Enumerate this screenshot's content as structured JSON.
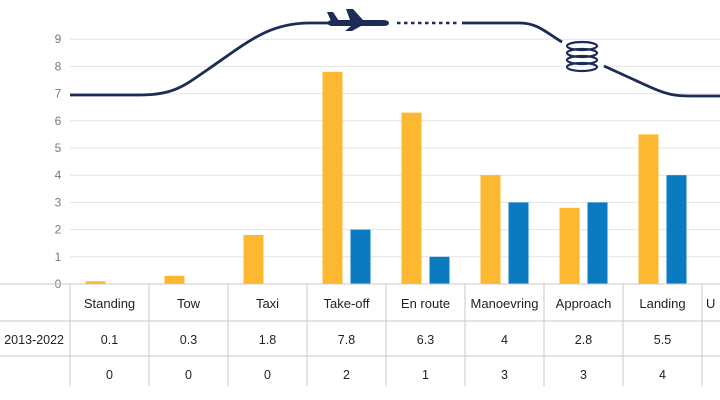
{
  "chart_data": {
    "type": "bar",
    "categories": [
      "Standing",
      "Tow",
      "Taxi",
      "Take-off",
      "En route",
      "Manoevring",
      "Approach",
      "Landing",
      "U"
    ],
    "series": [
      {
        "name": "2013-2022",
        "color": "#fbb830",
        "values": [
          0.1,
          0.3,
          1.8,
          7.8,
          6.3,
          4,
          2.8,
          5.5,
          null
        ]
      },
      {
        "name": "",
        "color": "#0a7bc1",
        "values": [
          0,
          0,
          0,
          2,
          1,
          3,
          3,
          4,
          null
        ]
      }
    ],
    "table": {
      "row_labels": [
        "2013-2022",
        ""
      ],
      "rows": [
        [
          "0.1",
          "0.3",
          "1.8",
          "7.8",
          "6.3",
          "4",
          "2.8",
          "5.5"
        ],
        [
          "0",
          "0",
          "0",
          "2",
          "1",
          "3",
          "3",
          "4"
        ]
      ]
    },
    "y_ticks": [
      "0",
      "1",
      "2",
      "3",
      "4",
      "5",
      "6",
      "7",
      "8",
      "9"
    ],
    "ylim": [
      0,
      9.5
    ],
    "grid": true,
    "flight_profile_color": "#1d2b57",
    "icons": [
      "airplane-icon",
      "holding-pattern-icon"
    ]
  }
}
